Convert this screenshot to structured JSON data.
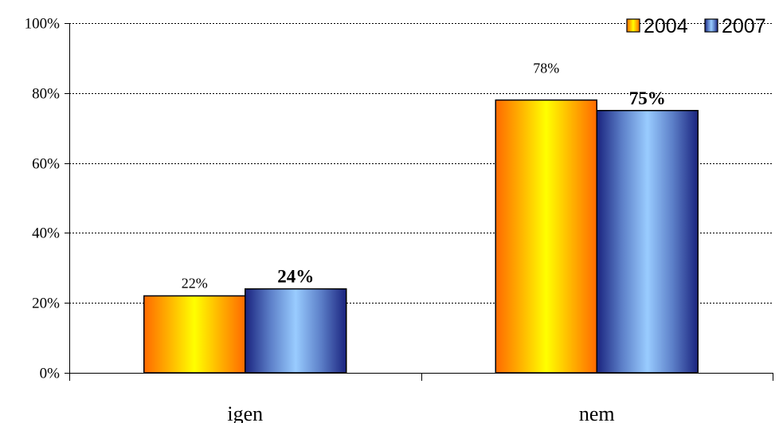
{
  "chart_data": {
    "type": "bar",
    "categories": [
      "igen",
      "nem"
    ],
    "series": [
      {
        "name": "2004",
        "values": [
          22,
          78
        ],
        "labels": [
          "22%",
          "78%"
        ],
        "label_style": "plain",
        "colors": [
          "#ff6600",
          "#ffff00"
        ]
      },
      {
        "name": "2007",
        "values": [
          24,
          75
        ],
        "labels": [
          "24%",
          "75%"
        ],
        "label_style": "bold",
        "colors": [
          "#1a237e",
          "#99ccff"
        ]
      }
    ],
    "ylim": [
      0,
      100
    ],
    "yticks": [
      "0%",
      "20%",
      "40%",
      "60%",
      "80%",
      "100%"
    ],
    "grid": true,
    "grid_style": "dashed",
    "legend_position": "top-right",
    "title": "",
    "xlabel": "",
    "ylabel": ""
  }
}
